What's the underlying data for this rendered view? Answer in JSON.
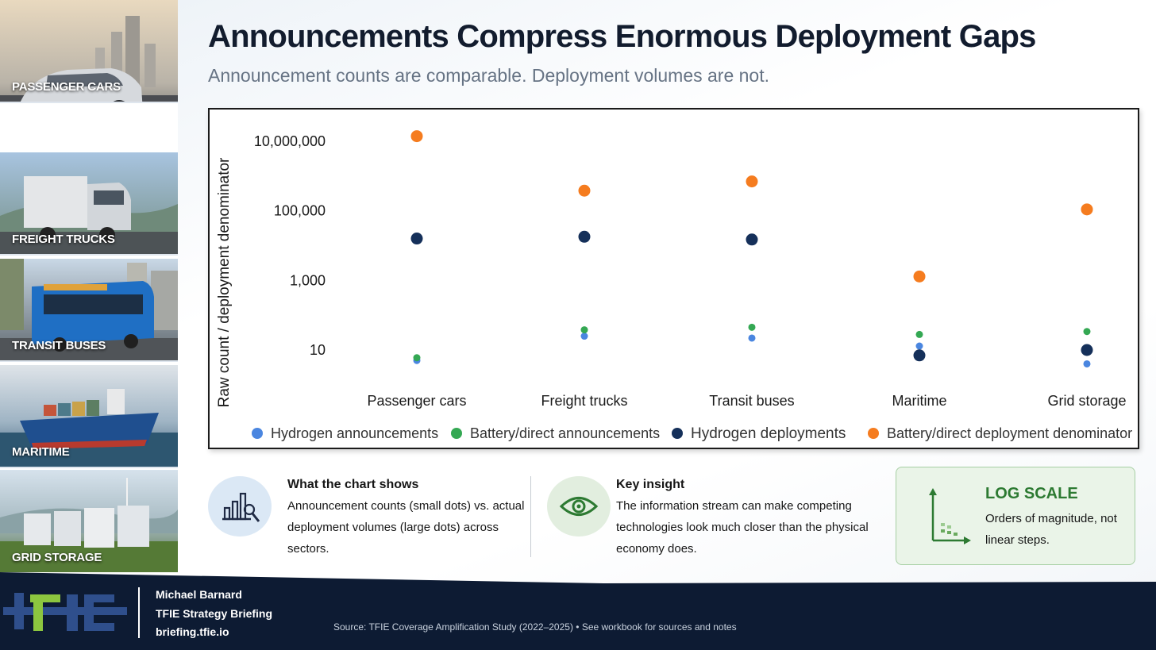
{
  "title": "Announcements Compress Enormous Deployment Gaps",
  "subtitle": "Announcement counts are comparable. Deployment volumes are not.",
  "sidebar": {
    "tiles": [
      {
        "label": "PASSENGER CARS"
      },
      {
        "label": "FREIGHT TRUCKS"
      },
      {
        "label": "TRANSIT BUSES"
      },
      {
        "label": "MARITIME"
      },
      {
        "label": "GRID STORAGE"
      }
    ]
  },
  "chart_data": {
    "type": "scatter",
    "title": "",
    "xlabel": "",
    "ylabel": "Raw count / deployment denominator",
    "yscale": "log",
    "ylim": [
      1,
      30000000
    ],
    "ytick_values": [
      10,
      1000,
      100000,
      10000000
    ],
    "ytick_labels": [
      "10",
      "1,000",
      "100,000",
      "10,000,000"
    ],
    "categories": [
      "Passenger cars",
      "Freight trucks",
      "Transit buses",
      "Maritime",
      "Grid storage"
    ],
    "legend_position": "bottom",
    "grid": false,
    "series": [
      {
        "name": "Hydrogen announcements",
        "color": "#4a86e0",
        "marker": "small",
        "values": [
          5,
          25,
          22,
          13,
          4
        ]
      },
      {
        "name": "Battery/direct announcements",
        "color": "#34a853",
        "marker": "small",
        "values": [
          6,
          38,
          45,
          28,
          34
        ]
      },
      {
        "name": "Hydrogen deployments",
        "color": "#15305a",
        "marker": "large",
        "values": [
          16000,
          18000,
          15000,
          7,
          10
        ]
      },
      {
        "name": "Battery/direct deployment denominator",
        "color": "#f57c1f",
        "marker": "large",
        "values": [
          14000000,
          380000,
          700000,
          1300,
          110000
        ]
      }
    ]
  },
  "info": {
    "chart_shows": {
      "title": "What the chart shows",
      "text": "Announcement counts (small dots) vs. actual deployment volumes (large dots) across sectors."
    },
    "key_insight": {
      "title": "Key insight",
      "text": "The information stream can make competing technologies look much closer than the physical economy does."
    },
    "log_scale": {
      "title": "LOG SCALE",
      "text": "Orders of magnitude, not linear steps."
    }
  },
  "footer": {
    "author": "Michael Barnard",
    "briefing": "TFIE Strategy Briefing",
    "url": "briefing.tfie.io",
    "source": "Source: TFIE Coverage Amplification Study (2022–2025) • See workbook for sources and notes"
  },
  "colors": {
    "footer_bg": "#0d1b33",
    "accent_green": "#2d7a32",
    "logo_blue": "#2f4f8c",
    "logo_green": "#8cc63f"
  }
}
